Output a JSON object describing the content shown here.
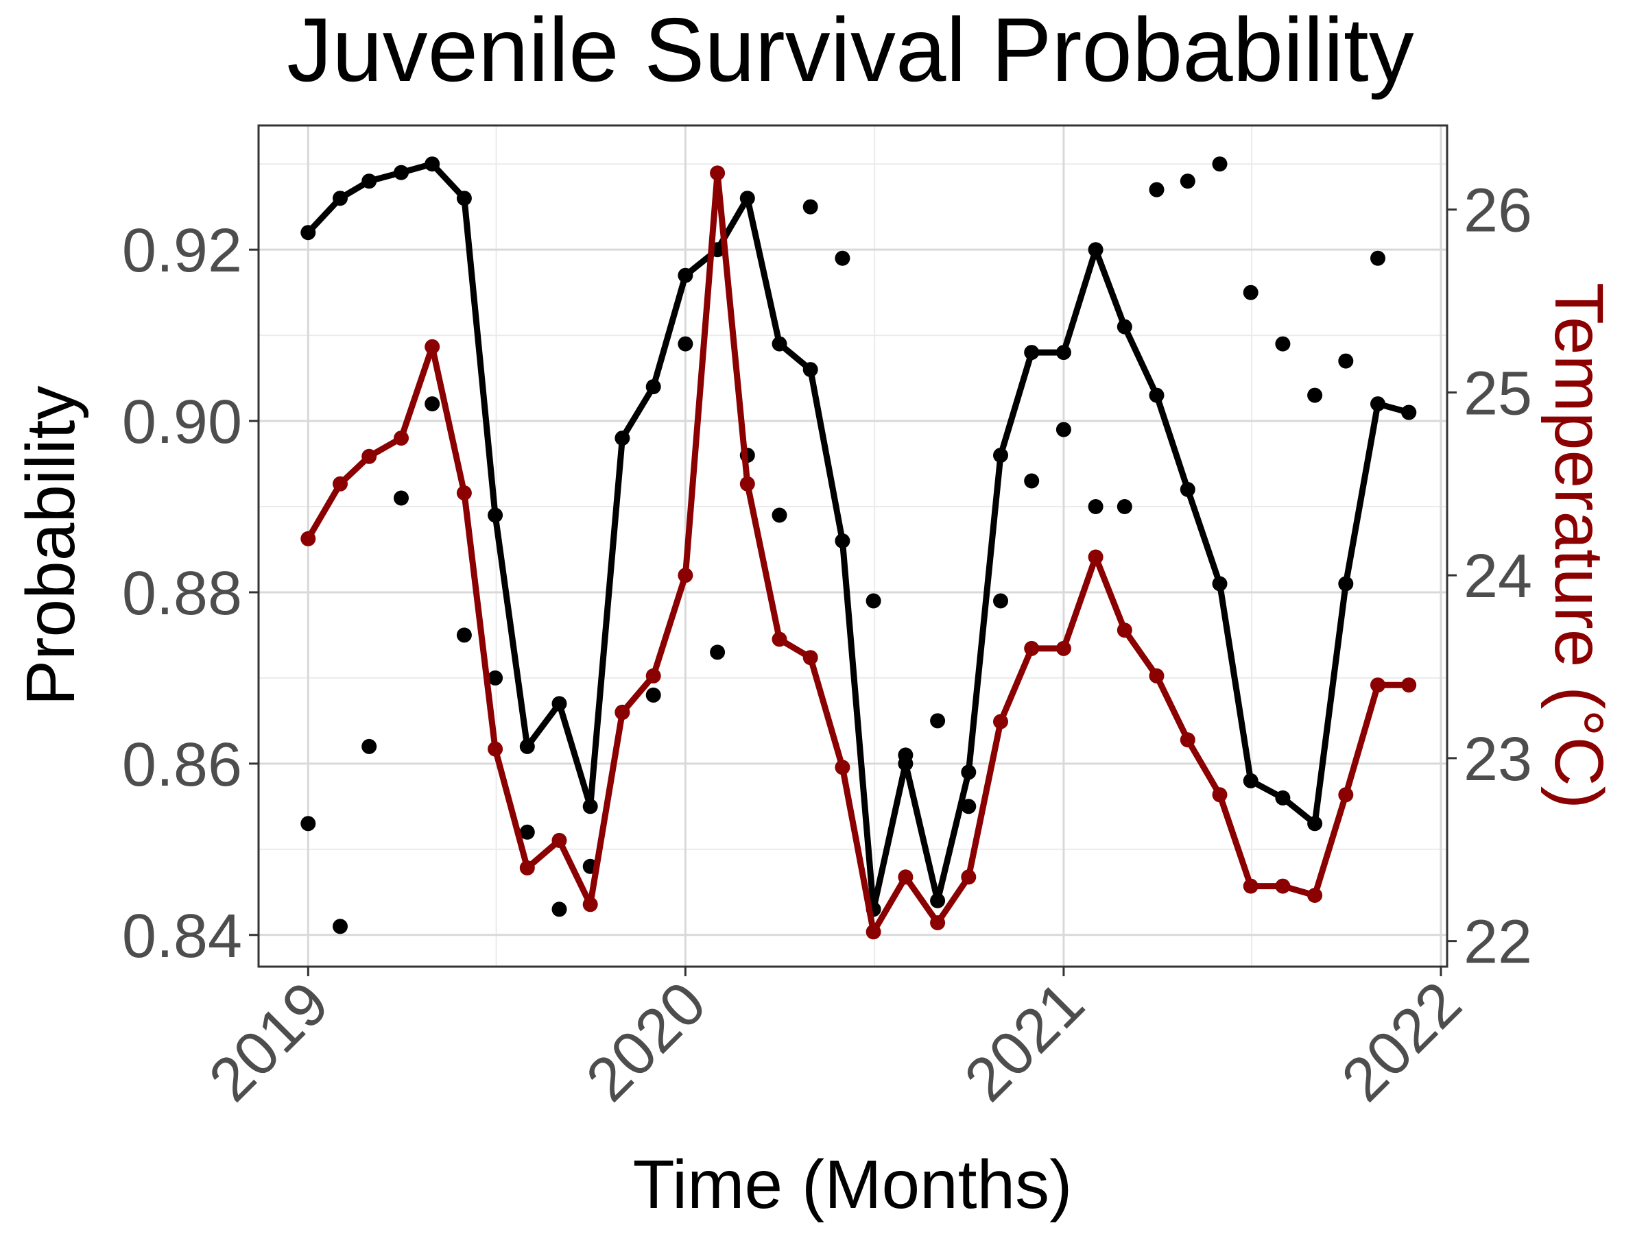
{
  "chart_data": {
    "type": "line",
    "title": "Juvenile Survival Probability",
    "xlabel": "Time (Months)",
    "ylabel": "Probability",
    "ylabel_right": "Temperature (°C)",
    "x_ticks": [
      "2019",
      "2020",
      "2021",
      "2022"
    ],
    "y_ticks": [
      "0.84",
      "0.86",
      "0.88",
      "0.90",
      "0.92"
    ],
    "y_right_ticks": [
      "22",
      "23",
      "24",
      "25",
      "26"
    ],
    "xlim": [
      "2018-11-14",
      "2022-01-07"
    ],
    "ylim": [
      0.8363,
      0.9345
    ],
    "ylim_right": [
      21.86,
      26.46
    ],
    "grid": true,
    "colors": {
      "probability": "#000000",
      "temperature": "#8b0000",
      "grid": "#d9d9d9",
      "tick_text": "#4d4d4d"
    },
    "x": [
      "2019-01",
      "2019-02",
      "2019-03",
      "2019-04",
      "2019-05",
      "2019-06",
      "2019-07",
      "2019-08",
      "2019-09",
      "2019-10",
      "2019-11",
      "2019-12",
      "2020-01",
      "2020-02",
      "2020-03",
      "2020-04",
      "2020-05",
      "2020-06",
      "2020-07",
      "2020-08",
      "2020-09",
      "2020-10",
      "2020-11",
      "2020-12",
      "2021-01",
      "2021-02",
      "2021-03",
      "2021-04",
      "2021-05",
      "2021-06",
      "2021-07",
      "2021-08",
      "2021-09",
      "2021-10",
      "2021-11",
      "2021-12"
    ],
    "series": [
      {
        "axis": "left",
        "style": "line+points",
        "values": [
          0.922,
          0.926,
          0.928,
          0.929,
          0.93,
          0.926,
          0.889,
          0.862,
          0.867,
          0.855,
          0.898,
          0.904,
          0.917,
          0.92,
          0.926,
          0.909,
          0.906,
          0.886,
          0.843,
          0.86,
          0.844,
          0.859,
          0.896,
          0.908,
          0.908,
          0.92,
          0.911,
          0.903,
          0.892,
          0.881,
          0.858,
          0.856,
          0.853,
          0.881,
          0.902,
          0.901
        ]
      },
      {
        "axis": "left",
        "style": "points",
        "values": [
          0.853,
          0.841,
          0.862,
          0.891,
          0.902,
          0.875,
          0.87,
          0.852,
          0.843,
          0.848,
          0.866,
          0.868,
          0.909,
          0.873,
          0.896,
          0.889,
          0.925,
          0.919,
          0.879,
          0.861,
          0.865,
          0.855,
          0.879,
          0.893,
          0.899,
          0.89,
          0.89,
          0.927,
          0.928,
          0.93,
          0.915,
          0.909,
          0.903,
          0.907,
          0.919,
          0.901
        ]
      },
      {
        "axis": "right",
        "style": "line+points",
        "values": [
          24.2,
          24.5,
          24.65,
          24.75,
          25.25,
          24.45,
          23.05,
          22.4,
          22.55,
          22.2,
          23.25,
          23.45,
          24.0,
          26.2,
          24.5,
          23.65,
          23.55,
          22.95,
          22.05,
          22.35,
          22.1,
          22.35,
          23.2,
          23.6,
          23.6,
          24.1,
          23.7,
          23.45,
          23.1,
          22.8,
          22.3,
          22.3,
          22.25,
          22.8,
          23.4,
          23.4
        ]
      }
    ]
  }
}
